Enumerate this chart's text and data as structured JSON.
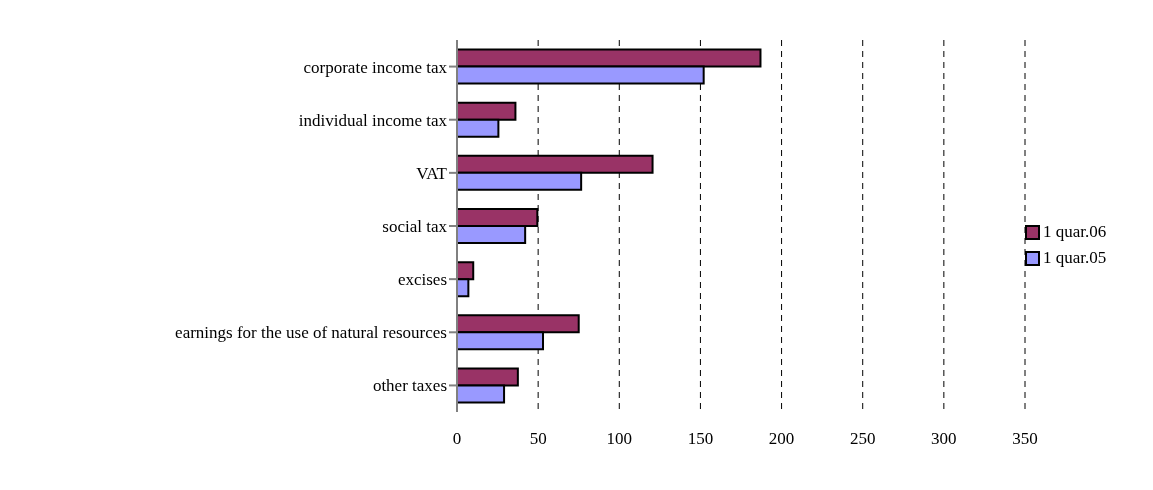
{
  "chart_data": {
    "type": "bar",
    "orientation": "horizontal",
    "categories": [
      "corporate income tax",
      "individual income tax",
      "VAT",
      "social tax",
      "excises",
      "earnings for the use of natural resources",
      "other taxes"
    ],
    "series": [
      {
        "name": "1 quar.06",
        "color": "#993366",
        "values": [
          187,
          36,
          120.5,
          49.5,
          10,
          75,
          37.5
        ]
      },
      {
        "name": "1 quar.05",
        "color": "#9999ff",
        "values": [
          152,
          25.5,
          76.5,
          42,
          7,
          53,
          29
        ]
      }
    ],
    "xlim": [
      0,
      350
    ],
    "xticks": [
      0,
      50,
      100,
      150,
      200,
      250,
      300,
      350
    ],
    "grid": "x",
    "legend": "right"
  }
}
